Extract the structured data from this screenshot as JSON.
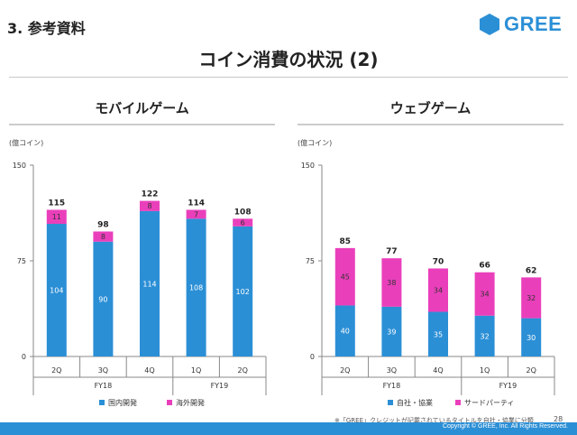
{
  "header": {
    "section_title": "3. 参考資料",
    "logo_text": "GREE",
    "main_title": "コイン消費の状況 (2)"
  },
  "footer": {
    "footnote": "※「GREE」クレジットが記載されているタイトルを自社・協業に分類",
    "page_number": "28",
    "copyright": "Copyright © GREE, Inc. All Rights Reserved."
  },
  "colors": {
    "blue": "#2b8fd6",
    "pink": "#ea3fbb"
  },
  "chart_data": [
    {
      "type": "bar",
      "stacked": true,
      "title": "モバイルゲーム",
      "unit_label": "(億コイン)",
      "ylim": [
        0,
        150
      ],
      "yticks": [
        "0",
        "75",
        "150"
      ],
      "categories": [
        "2Q",
        "3Q",
        "4Q",
        "1Q",
        "2Q"
      ],
      "groups": [
        {
          "label": "FY18",
          "span": 3
        },
        {
          "label": "FY19",
          "span": 2
        }
      ],
      "totals": [
        115,
        98,
        122,
        114,
        108
      ],
      "series": [
        {
          "name": "国内開発",
          "color": "#2b8fd6",
          "values": [
            104,
            90,
            114,
            108,
            102
          ]
        },
        {
          "name": "海外開発",
          "color": "#ea3fbb",
          "values": [
            11,
            8,
            8,
            7,
            6
          ]
        }
      ],
      "legend_position": "bottom"
    },
    {
      "type": "bar",
      "stacked": true,
      "title": "ウェブゲーム",
      "unit_label": "(億コイン)",
      "ylim": [
        0,
        150
      ],
      "yticks": [
        "0",
        "75",
        "150"
      ],
      "categories": [
        "2Q",
        "3Q",
        "4Q",
        "1Q",
        "2Q"
      ],
      "groups": [
        {
          "label": "FY18",
          "span": 3
        },
        {
          "label": "FY19",
          "span": 2
        }
      ],
      "totals": [
        85,
        77,
        70,
        66,
        62
      ],
      "series": [
        {
          "name": "自社・協業",
          "color": "#2b8fd6",
          "values": [
            40,
            39,
            35,
            32,
            30
          ]
        },
        {
          "name": "サードパーティ",
          "color": "#ea3fbb",
          "values": [
            45,
            38,
            34,
            34,
            32
          ]
        }
      ],
      "legend_position": "bottom"
    }
  ]
}
